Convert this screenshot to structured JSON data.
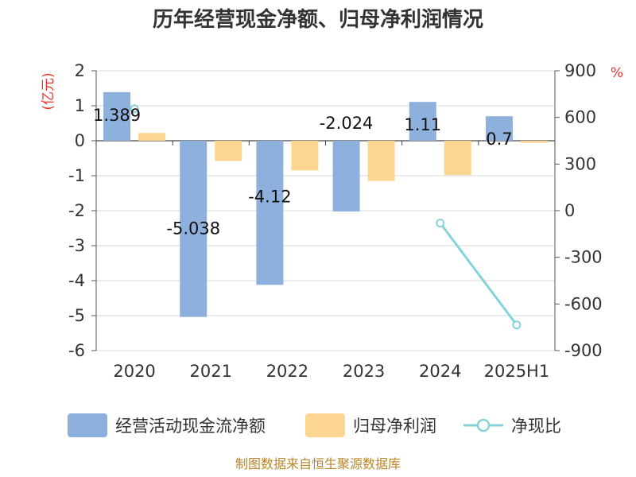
{
  "chart_data": {
    "type": "bar",
    "title": "历年经营现金净额、归母净利润情况",
    "categories": [
      "2020",
      "2021",
      "2022",
      "2023",
      "2024",
      "2025H1"
    ],
    "series": [
      {
        "name": "经营活动现金流净额",
        "kind": "bar",
        "axis": "left",
        "color": "#8eb0dc",
        "values": [
          1.389,
          -5.038,
          -4.12,
          -2.024,
          1.11,
          0.7
        ],
        "data_labels": [
          "1.389",
          "-5.038",
          "-4.12",
          "-2.024",
          "1.11",
          "0.7"
        ]
      },
      {
        "name": "归母净利润",
        "kind": "bar",
        "axis": "left",
        "color": "#fcd592",
        "values": [
          0.22,
          -0.58,
          -0.85,
          -1.15,
          -0.98,
          -0.06
        ]
      },
      {
        "name": "净现比",
        "kind": "line",
        "axis": "right",
        "color": "#86d2da",
        "values": [
          655,
          null,
          null,
          null,
          -80,
          -735
        ]
      }
    ],
    "y_left": {
      "label": "(亿元)",
      "min": -6,
      "max": 2,
      "ticks": [
        2,
        1,
        0,
        -1,
        -2,
        -3,
        -4,
        -5,
        -6
      ],
      "tick_labels": [
        "2",
        "1",
        "0",
        "-1",
        "-2",
        "-3",
        "-4",
        "-5",
        "-6"
      ]
    },
    "y_right": {
      "label": "%",
      "min": -900,
      "max": 900,
      "ticks": [
        900,
        600,
        300,
        0,
        -300,
        -600,
        -900
      ],
      "tick_labels": [
        "900",
        "600",
        "300",
        "0",
        "-300",
        "-600",
        "-900"
      ]
    },
    "grid": true,
    "legend_position": "bottom"
  },
  "source": "制图数据来自恒生聚源数据库"
}
